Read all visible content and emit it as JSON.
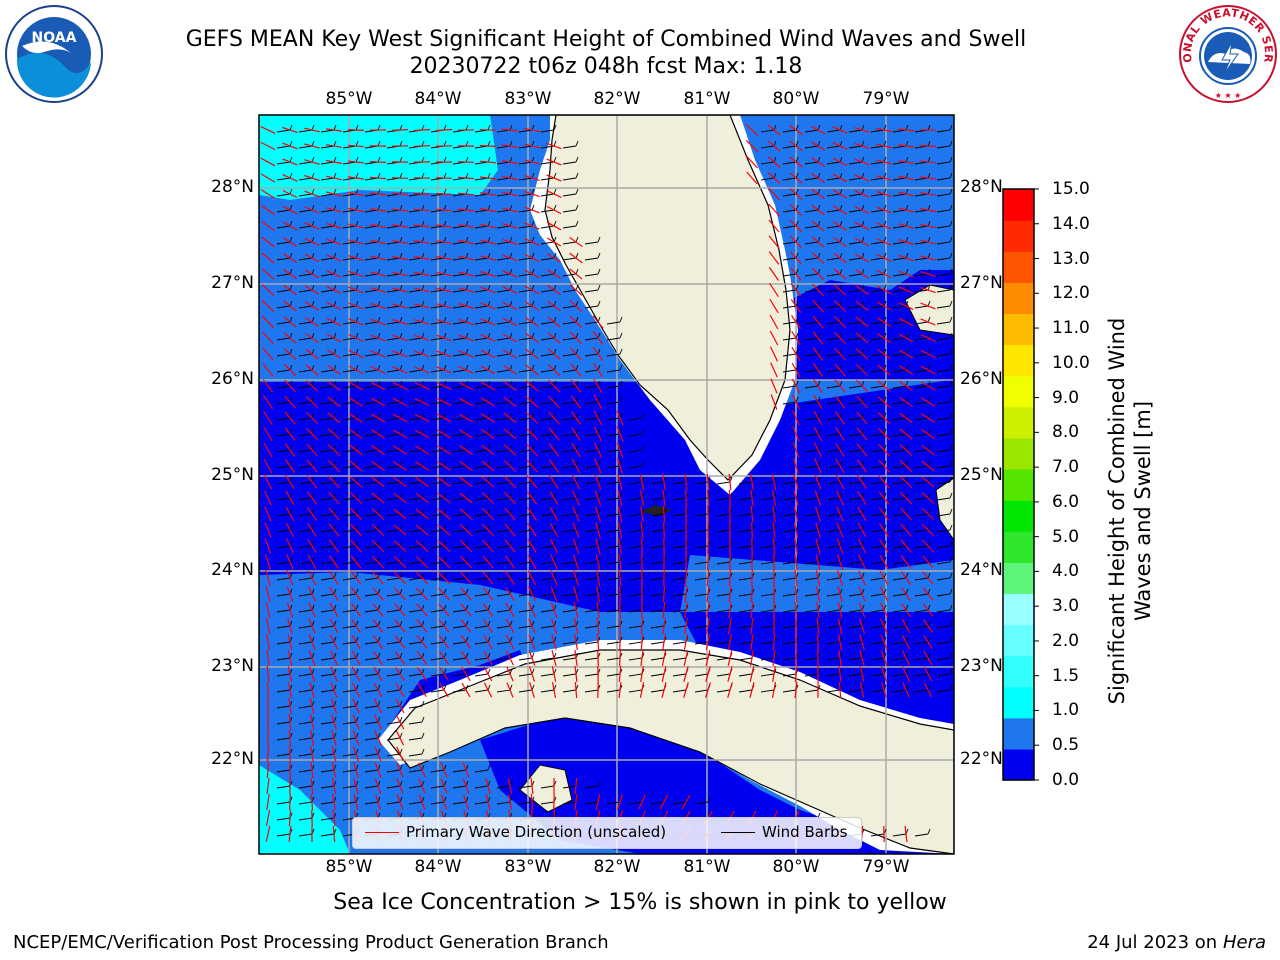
{
  "title_line1": "GEFS MEAN Key West Significant Height of Combined Wind Waves and Swell",
  "title_line2": "20230722 t06z 048h fcst   Max: 1.18",
  "noaa_logo_text": "NOAA",
  "nws_logo_text": "NATIONAL WEATHER SERVICE",
  "lon_ticks": [
    "85°W",
    "84°W",
    "83°W",
    "82°W",
    "81°W",
    "80°W",
    "79°W"
  ],
  "lat_ticks": [
    "28°N",
    "27°N",
    "26°N",
    "25°N",
    "24°N",
    "23°N",
    "22°N"
  ],
  "colorbar": {
    "label": "Significant Height of Combined Wind Waves and Swell [m]",
    "ticks": [
      "15.0",
      "14.0",
      "13.0",
      "12.0",
      "11.0",
      "10.0",
      "9.0",
      "8.0",
      "7.0",
      "6.0",
      "5.0",
      "4.0",
      "3.0",
      "2.0",
      "1.5",
      "1.0",
      "0.5",
      "0.0"
    ],
    "colors_bottom_to_top": [
      "#0000f0",
      "#1f77f0",
      "#00ffff",
      "#33ffff",
      "#66ffff",
      "#99ffff",
      "#5ff57a",
      "#2fe62f",
      "#00e600",
      "#55e600",
      "#99e600",
      "#ccf000",
      "#f0ff00",
      "#ffe600",
      "#ffbb00",
      "#ff8c00",
      "#ff5500",
      "#ff2a00",
      "#ff0000"
    ]
  },
  "legend": {
    "wave_label": "Primary Wave Direction (unscaled)",
    "wave_color": "#ff0000",
    "barb_label": "Wind Barbs",
    "barb_color": "#000000"
  },
  "colors": {
    "land": "#efefdc",
    "wave_0_05": "#0000f0",
    "wave_05_1": "#1f77f0",
    "wave_1_15": "#00ffff",
    "grid": "#aaaaaa"
  },
  "note": "Sea Ice Concentration > 15% is shown in pink to yellow",
  "footer_left": "NCEP/EMC/Verification Post Processing Product Generation Branch",
  "footer_date": "24 Jul 2023 on ",
  "footer_host": "Hera"
}
